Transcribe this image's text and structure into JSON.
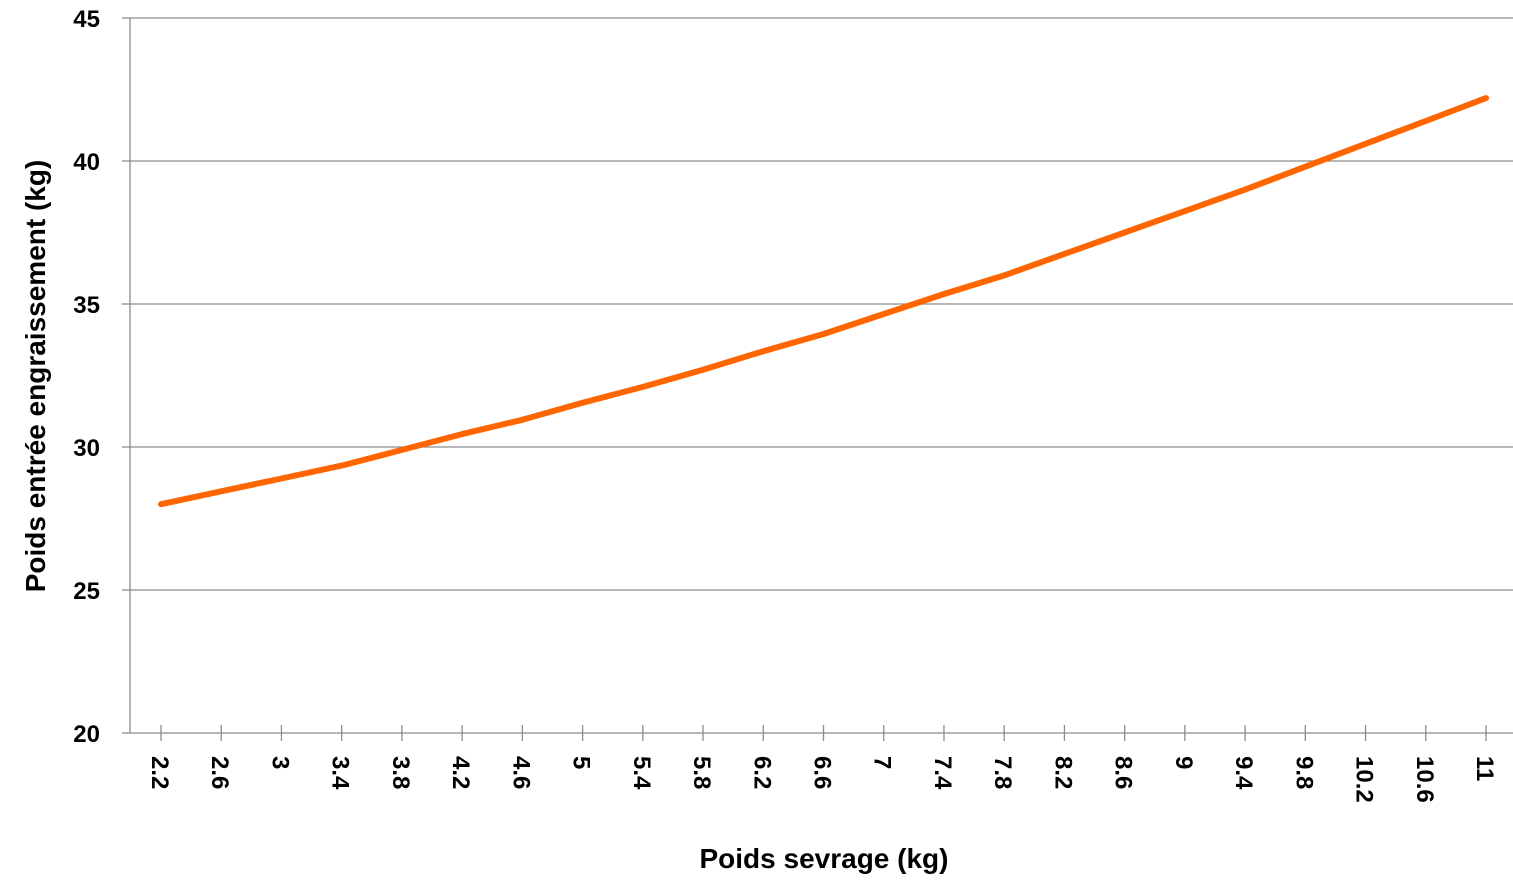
{
  "chart_data": {
    "type": "line",
    "title": "",
    "xlabel": "Poids sevrage (kg)",
    "ylabel": "Poids entrée engraissement (kg)",
    "ylim": [
      20,
      45
    ],
    "yticks": [
      "20",
      "25",
      "30",
      "35",
      "40",
      "45"
    ],
    "categories": [
      "2.2",
      "2.6",
      "3",
      "3.4",
      "3.8",
      "4.2",
      "4.6",
      "5",
      "5.4",
      "5.8",
      "6.2",
      "6.6",
      "7",
      "7.4",
      "7.8",
      "8.2",
      "8.6",
      "9",
      "9.4",
      "9.8",
      "10.2",
      "10.6",
      "11"
    ],
    "series": [
      {
        "color": "#FF6600",
        "values": [
          28.0,
          28.45,
          28.9,
          29.35,
          29.9,
          30.45,
          30.95,
          31.55,
          32.1,
          32.7,
          33.35,
          33.95,
          34.65,
          35.35,
          36.0,
          36.75,
          37.5,
          38.25,
          39.0,
          39.8,
          40.6,
          41.4,
          42.2
        ]
      }
    ],
    "grid": "horizontal",
    "legend": "none"
  }
}
